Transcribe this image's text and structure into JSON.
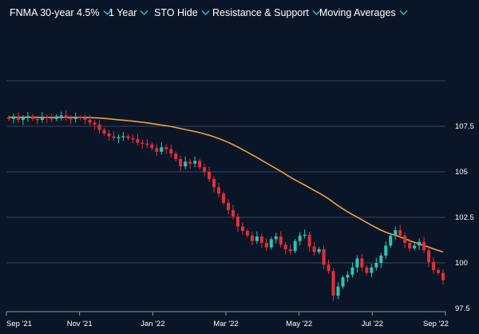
{
  "toolbar": {
    "items": [
      {
        "label": "FNMA 30-year 4.5%"
      },
      {
        "label": "1 Year"
      },
      {
        "label": "STO Hide"
      },
      {
        "label": "Resistance & Support"
      },
      {
        "label": "Moving Averages"
      }
    ],
    "chevron_icon": "chevron-down-icon"
  },
  "colors": {
    "background": "#0a1628",
    "up": "#2ec4b6",
    "down": "#e0303a",
    "moving_average": "#f0a040",
    "gridline": "#3a4658",
    "chevron": "#2ec4b6"
  },
  "chart_data": {
    "type": "candlestick",
    "x_ticks": [
      "Sep '21",
      "Nov '21",
      "Jan '22",
      "Mar '22",
      "May '22",
      "Jul '22",
      "Sep '22"
    ],
    "y_ticks": [
      "107.5",
      "105",
      "102.5",
      "100",
      "97.5"
    ],
    "y_tick_values": [
      107.5,
      105,
      102.5,
      100,
      97.5
    ],
    "ylim": [
      97.5,
      110
    ],
    "grid": "horizontal",
    "closes": [
      107.9,
      108.0,
      107.85,
      107.95,
      108.05,
      107.9,
      107.85,
      108.0,
      107.95,
      107.9,
      108.05,
      108.1,
      107.95,
      107.9,
      108.0,
      107.95,
      107.85,
      107.7,
      107.6,
      107.3,
      107.1,
      106.95,
      106.85,
      106.9,
      106.95,
      106.85,
      106.8,
      106.6,
      106.55,
      106.5,
      106.3,
      106.1,
      106.35,
      106.25,
      106.0,
      105.7,
      105.3,
      105.55,
      105.45,
      105.6,
      105.25,
      105.0,
      104.6,
      104.15,
      103.8,
      103.3,
      102.9,
      102.55,
      102.0,
      101.75,
      101.5,
      101.2,
      101.45,
      101.1,
      100.85,
      101.3,
      101.45,
      101.0,
      100.75,
      100.65,
      101.2,
      101.5,
      101.55,
      100.9,
      100.6,
      100.75,
      99.9,
      99.55,
      98.2,
      98.7,
      99.2,
      99.35,
      99.75,
      100.25,
      99.75,
      99.45,
      99.75,
      100.0,
      100.4,
      100.95,
      101.5,
      101.8,
      101.5,
      101.1,
      100.8,
      100.95,
      101.15,
      100.7,
      100.05,
      99.6,
      99.45,
      99.05
    ]
  }
}
